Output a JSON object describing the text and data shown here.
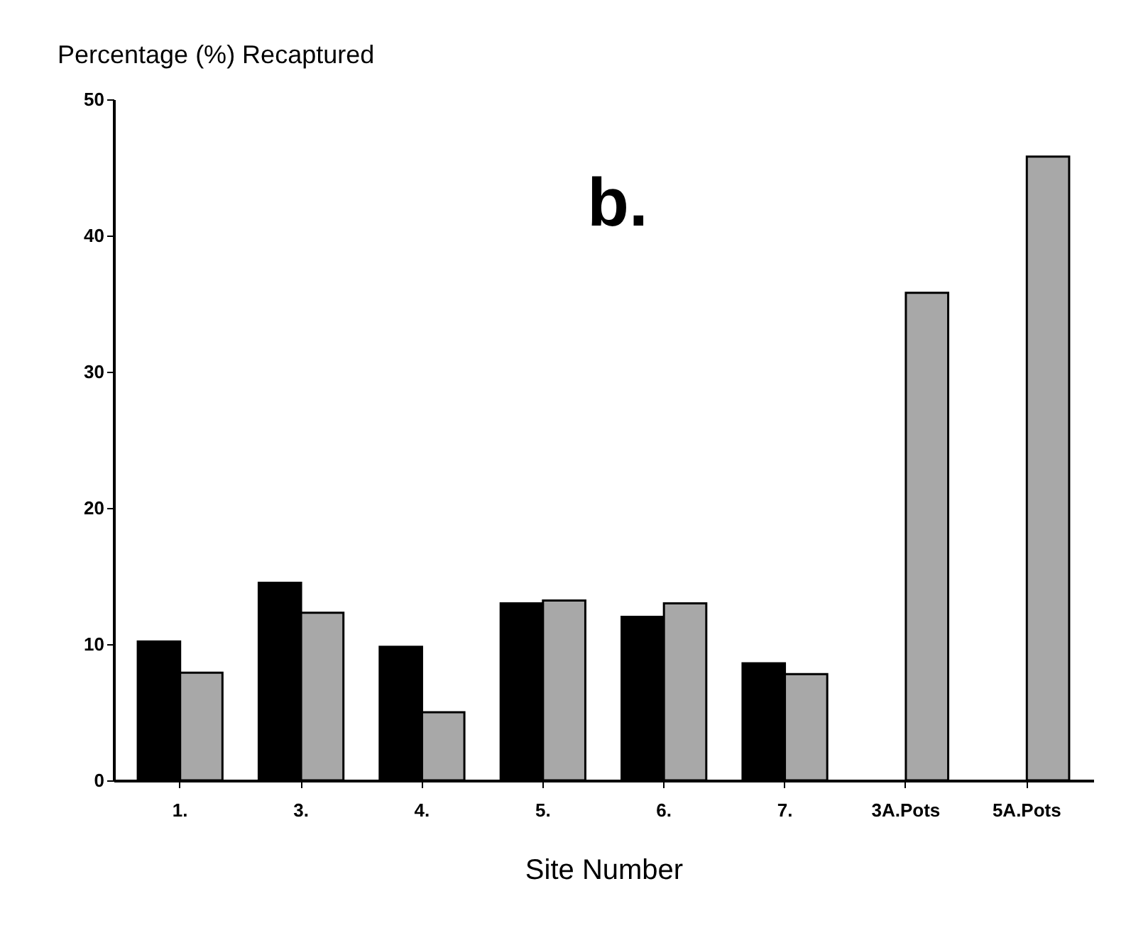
{
  "chart_data": {
    "type": "bar",
    "ylabel": "Percentage (%) Recaptured",
    "xlabel": "Site Number",
    "categories": [
      "1.",
      "3.",
      "4.",
      "5.",
      "6.",
      "7.",
      "3A.Pots",
      "5A.Pots"
    ],
    "series": [
      {
        "color": "#000000",
        "values": [
          10.2,
          14.5,
          9.8,
          13.0,
          12.0,
          8.6,
          null,
          null
        ]
      },
      {
        "color": "#a8a8a8",
        "values": [
          7.9,
          12.3,
          5.0,
          13.2,
          13.0,
          7.8,
          35.8,
          45.8
        ]
      }
    ],
    "ylim": [
      0,
      50
    ],
    "yticks": [
      0,
      10,
      20,
      30,
      40,
      50
    ],
    "grid": false,
    "legend": false,
    "annotations": [
      "b."
    ]
  }
}
